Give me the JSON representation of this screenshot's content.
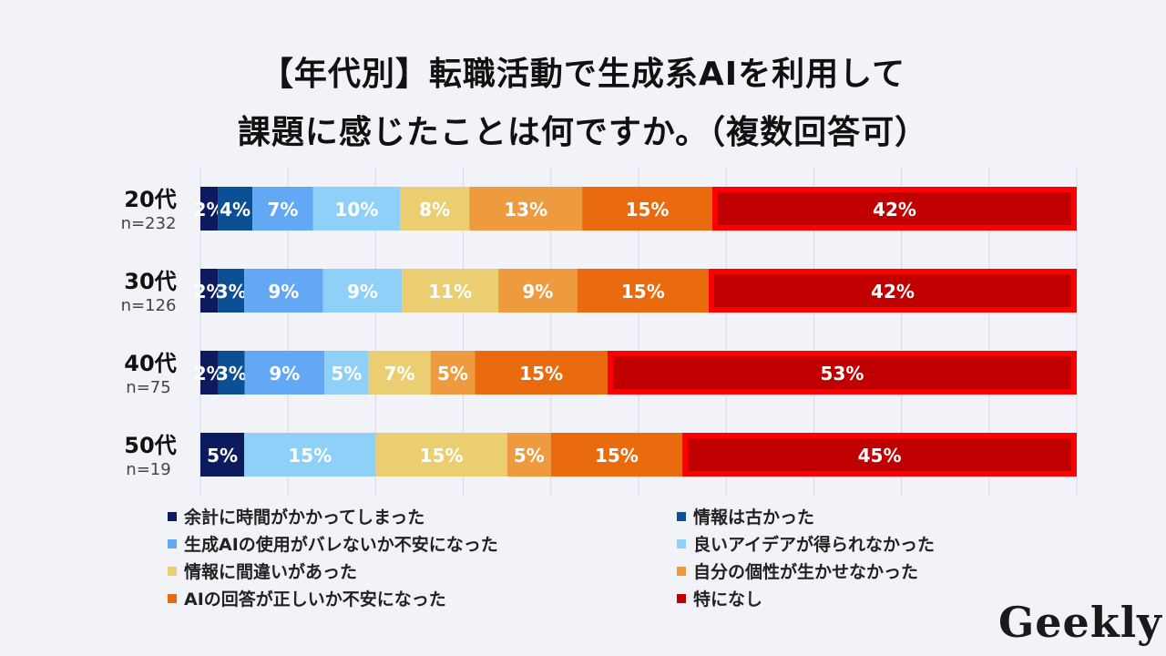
{
  "title_line1": "【年代別】転職活動で生成系AIを利用して",
  "title_line2": "課題に感じたことは何ですか。（複数回答可）",
  "logo": "Geekly",
  "chart_data": {
    "type": "bar",
    "orientation": "horizontal",
    "stacked": true,
    "percent": true,
    "categories": [
      "20代",
      "30代",
      "40代",
      "50代"
    ],
    "sample_sizes": [
      "n=232",
      "n=126",
      "n=75",
      "n=19"
    ],
    "series": [
      {
        "name": "余計に時間がかかってしまった",
        "color": "#0d1b5e",
        "values": [
          2,
          2,
          2,
          5
        ]
      },
      {
        "name": "情報は古かった",
        "color": "#0b4f94",
        "values": [
          4,
          3,
          3,
          0
        ]
      },
      {
        "name": "生成AIの使用がバレないか不安になった",
        "color": "#62a8f4",
        "values": [
          7,
          9,
          9,
          0
        ]
      },
      {
        "name": "良いアイデアが得られなかった",
        "color": "#8fd0f8",
        "values": [
          10,
          9,
          5,
          15
        ]
      },
      {
        "name": "情報に間違いがあった",
        "color": "#ebcd72",
        "values": [
          8,
          11,
          7,
          15
        ]
      },
      {
        "name": "自分の個性が生かせなかった",
        "color": "#ee9a3e",
        "values": [
          13,
          9,
          5,
          5
        ]
      },
      {
        "name": "AIの回答が正しいか不安になった",
        "color": "#e96b0e",
        "values": [
          15,
          15,
          15,
          15
        ]
      },
      {
        "name": "特になし",
        "color": "#c00000",
        "values": [
          42,
          42,
          53,
          45
        ]
      }
    ],
    "highlight_series": "特になし",
    "highlight_color": "#ff0000",
    "grid": true
  }
}
